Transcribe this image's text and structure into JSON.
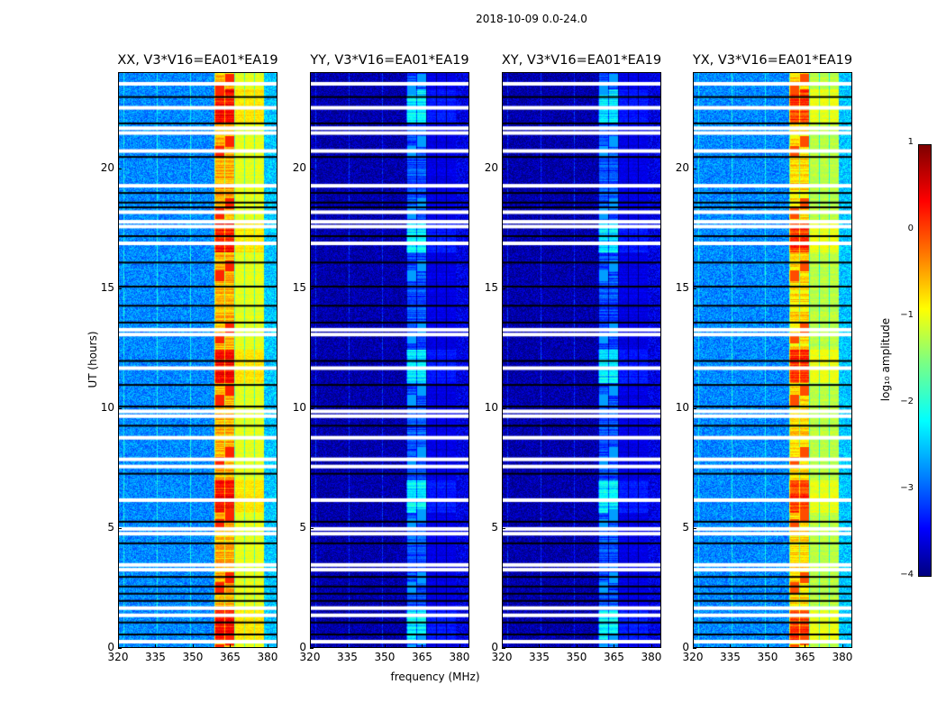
{
  "chart_data": {
    "type": "heatmap",
    "title": "2018-10-09 0.0-24.0",
    "xlabel": "frequency (MHz)",
    "ylabel": "UT (hours)",
    "xlim": [
      320,
      384
    ],
    "ylim": [
      0,
      24
    ],
    "xticks": [
      "320",
      "335",
      "350",
      "365",
      "380"
    ],
    "xtick_values": [
      320,
      335,
      350,
      365,
      380
    ],
    "yticks": [
      "0",
      "5",
      "10",
      "15",
      "20"
    ],
    "ytick_values": [
      0,
      5,
      10,
      15,
      20
    ],
    "colormap": "jet",
    "panels": [
      {
        "title": "XX, V3*V16=EA01*EA19",
        "background_log_amp": -2.7,
        "band_log_amp": -1.0,
        "band_peak_log_amp": 0.2
      },
      {
        "title": "YY, V3*V16=EA01*EA19",
        "background_log_amp": -3.8,
        "band_log_amp": -3.5,
        "band_peak_log_amp": -2.6
      },
      {
        "title": "XY, V3*V16=EA01*EA19",
        "background_log_amp": -3.8,
        "band_log_amp": -3.5,
        "band_peak_log_amp": -2.6
      },
      {
        "title": "YX, V3*V16=EA01*EA19",
        "background_log_amp": -2.7,
        "band_log_amp": -1.2,
        "band_peak_log_amp": 0.0
      }
    ],
    "band_MHz": [
      358,
      378
    ],
    "flagged_hours": [
      23.55,
      22.55,
      21.7,
      21.5,
      20.75,
      19.3,
      18.2,
      17.8,
      17.6,
      16.9,
      13.3,
      13.1,
      11.7,
      9.9,
      9.7,
      8.8,
      7.9,
      7.6,
      6.2,
      5.0,
      4.8,
      3.5,
      3.3,
      1.7,
      1.4,
      0.3
    ],
    "gap_hours": [
      23.0,
      21.9,
      20.5,
      19.0,
      18.6,
      18.4,
      17.2,
      16.1,
      15.1,
      14.3,
      13.6,
      12.0,
      11.0,
      10.1,
      9.3,
      7.3,
      5.3,
      4.4,
      3.0,
      2.6,
      2.3,
      2.0,
      1.1,
      0.6
    ],
    "colorbar": {
      "label": "log₁₀ amplitude",
      "ticks": [
        "1",
        "0",
        "−1",
        "−2",
        "−3",
        "−4"
      ],
      "tick_values": [
        1,
        0,
        -1,
        -2,
        -3,
        -4
      ],
      "range": [
        -4,
        1
      ]
    }
  }
}
